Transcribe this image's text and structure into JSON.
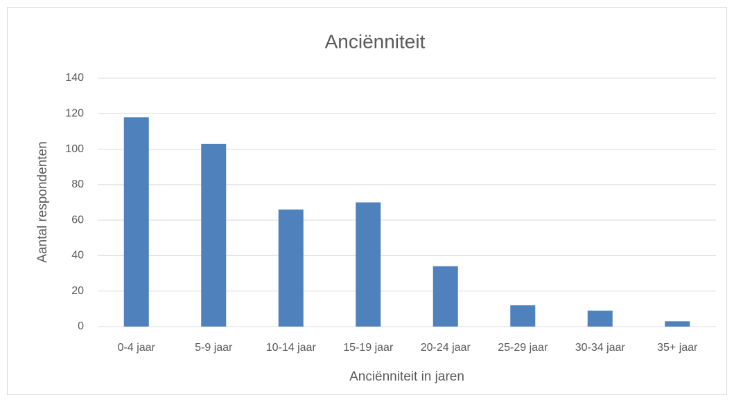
{
  "chart_data": {
    "type": "bar",
    "title": "Anciënniteit",
    "x_label": "Anciënniteit in jaren",
    "y_label": "Aantal respondenten",
    "categories": [
      "0-4 jaar",
      "5-9 jaar",
      "10-14 jaar",
      "15-19 jaar",
      "20-24 jaar",
      "25-29 jaar",
      "30-34 jaar",
      "35+ jaar"
    ],
    "values": [
      118,
      103,
      66,
      70,
      34,
      12,
      9,
      3
    ],
    "color": "#4f81bd",
    "ylim": [
      0,
      140
    ],
    "yticks": [
      0,
      20,
      40,
      60,
      80,
      100,
      120,
      140
    ],
    "grid": true
  }
}
